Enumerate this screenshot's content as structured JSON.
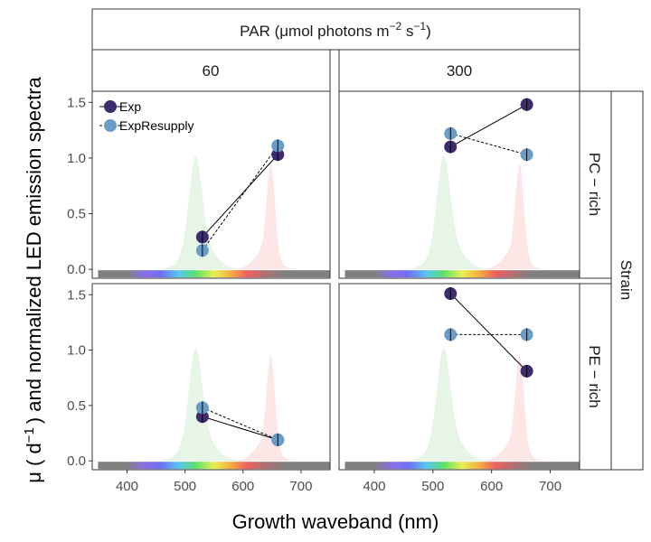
{
  "chart_data": {
    "type": "scatter",
    "title": "",
    "xlabel": "Growth waveband (nm)",
    "ylabel": "μ ( d",
    "ylabel_sup": "−1",
    "ylabel_rest": ") and normalized LED emission spectra",
    "xlim": [
      340,
      750
    ],
    "ylim": [
      -0.08,
      1.6
    ],
    "xticks": [
      "400",
      "500",
      "600",
      "700"
    ],
    "yticks": [
      "0.0",
      "0.5",
      "1.0",
      "1.5"
    ],
    "column_facet": {
      "title_main": "PAR (μmol photons m",
      "title_sup1": "−2",
      "title_mid": " s",
      "title_sup2": "−1",
      "title_end": ")",
      "levels": [
        "60",
        "300"
      ]
    },
    "row_facet": {
      "title": "Strain",
      "levels": [
        "PC − rich",
        "PE − rich"
      ]
    },
    "legend": {
      "position": "top-left",
      "entries": [
        "Exp",
        "ExpResupply"
      ]
    },
    "series_colors": {
      "Exp": "#3d2c6e",
      "ExpResupply": "#6a9cc8"
    },
    "led_colors": {
      "green": "#e6f5e6",
      "red": "#fde6e6"
    },
    "panels": [
      {
        "row": 0,
        "col": 0,
        "series": [
          {
            "name": "Exp",
            "x": [
              530,
              660
            ],
            "y": [
              0.29,
              1.03
            ]
          },
          {
            "name": "ExpResupply",
            "x": [
              530,
              660
            ],
            "y": [
              0.17,
              1.11
            ]
          }
        ]
      },
      {
        "row": 0,
        "col": 1,
        "series": [
          {
            "name": "Exp",
            "x": [
              530,
              660
            ],
            "y": [
              1.1,
              1.48
            ]
          },
          {
            "name": "ExpResupply",
            "x": [
              530,
              660
            ],
            "y": [
              1.22,
              1.03
            ]
          }
        ]
      },
      {
        "row": 1,
        "col": 0,
        "series": [
          {
            "name": "Exp",
            "x": [
              530,
              660
            ],
            "y": [
              0.4,
              0.19
            ]
          },
          {
            "name": "ExpResupply",
            "x": [
              530,
              660
            ],
            "y": [
              0.48,
              0.19
            ]
          }
        ]
      },
      {
        "row": 1,
        "col": 1,
        "series": [
          {
            "name": "Exp",
            "x": [
              530,
              660
            ],
            "y": [
              1.51,
              0.81
            ]
          },
          {
            "name": "ExpResupply",
            "x": [
              530,
              660
            ],
            "y": [
              1.14,
              1.14
            ]
          }
        ]
      }
    ]
  }
}
